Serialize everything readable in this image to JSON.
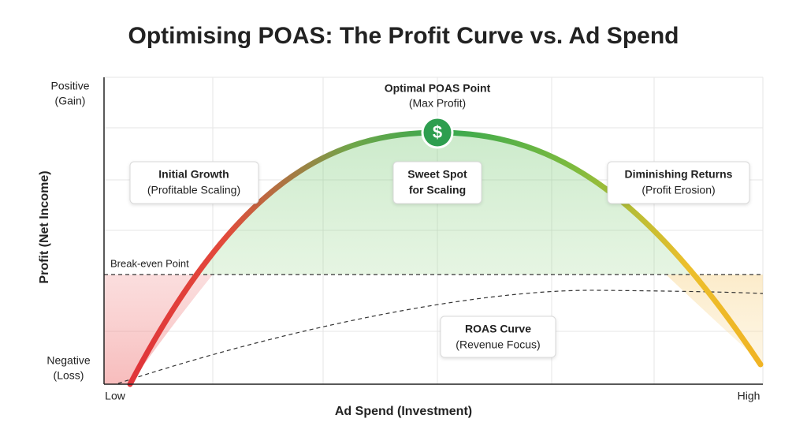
{
  "title": "Optimising POAS: The Profit Curve vs. Ad Spend",
  "x_axis": {
    "label": "Ad Spend (Investment)",
    "low": "Low",
    "high": "High"
  },
  "y_axis": {
    "label": "Profit (Net Income)",
    "positive": "Positive",
    "positive_note": "(Gain)",
    "negative": "Negative",
    "negative_note": "(Loss)"
  },
  "optimal": {
    "title": "Optimal POAS Point",
    "subtitle": "(Max Profit)",
    "icon": "$"
  },
  "break_even": "Break-even Point",
  "annotations": [
    {
      "title": "Initial Growth",
      "subtitle": "(Profitable Scaling)"
    },
    {
      "title": "Sweet Spot",
      "subtitle": "for Scaling"
    },
    {
      "title": "Diminishing Returns",
      "subtitle": "(Profit Erosion)"
    },
    {
      "title": "ROAS Curve",
      "subtitle": "(Revenue Focus)"
    }
  ]
}
